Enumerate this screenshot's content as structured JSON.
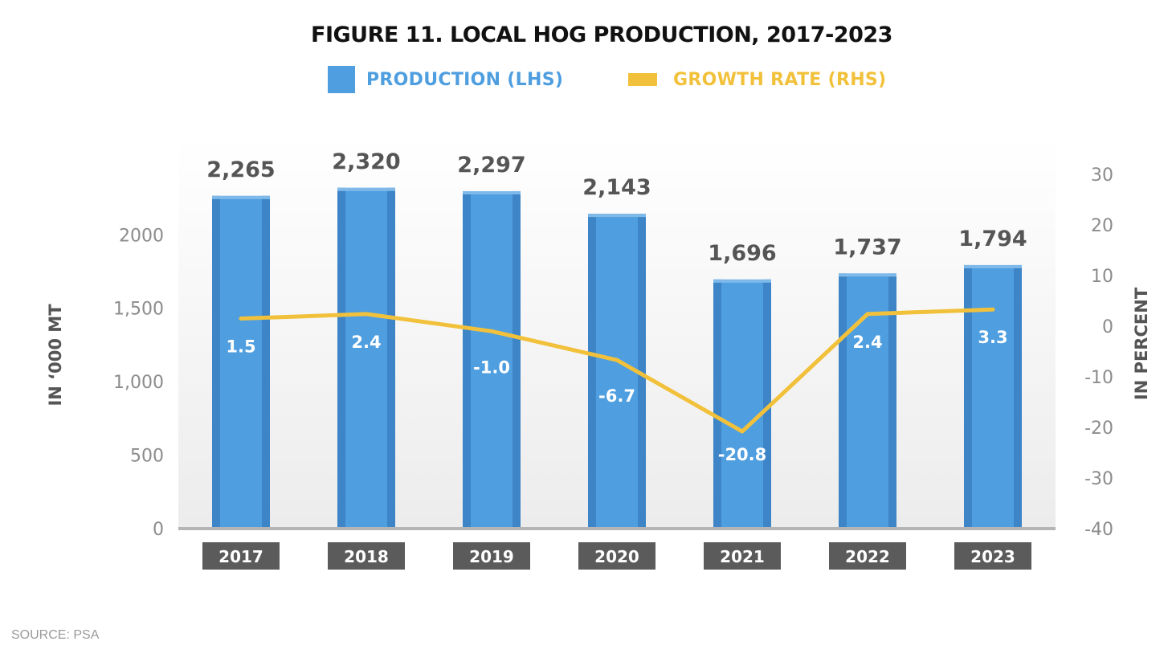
{
  "colors": {
    "bar": "#4e9ee0",
    "bar_edge": "#3d85c6",
    "line": "#f2c13b",
    "legend_bar_text": "#4e9ee0",
    "legend_line_text": "#f2c13b",
    "year_box": "#5b5b5b",
    "axis_text": "#8c8c8c",
    "value_text": "#555555"
  },
  "chart_data": {
    "type": "bar",
    "title": "FIGURE 11. LOCAL HOG PRODUCTION, 2017-2023",
    "categories": [
      "2017",
      "2018",
      "2019",
      "2020",
      "2021",
      "2022",
      "2023"
    ],
    "series": [
      {
        "name": "PRODUCTION (LHS)",
        "type": "bar",
        "axis": "left",
        "values": [
          2265,
          2320,
          2297,
          2143,
          1696,
          1737,
          1794
        ],
        "labels": [
          "2,265",
          "2,320",
          "2,297",
          "2,143",
          "1,696",
          "1,737",
          "1,794"
        ]
      },
      {
        "name": "GROWTH RATE (RHS)",
        "type": "line",
        "axis": "right",
        "values": [
          1.5,
          2.4,
          -1.0,
          -6.7,
          -20.8,
          2.4,
          3.3
        ],
        "labels": [
          "1.5",
          "2.4",
          "-1.0",
          "-6.7",
          "-20.8",
          "2.4",
          "3.3"
        ]
      }
    ],
    "ylabel_left": "IN ‘000 MT",
    "ylabel_right": "IN PERCENT",
    "ylim_left": [
      0,
      2450
    ],
    "ylim_right": [
      -40,
      30
    ],
    "yticks_left": [
      "0",
      "500",
      "1,000",
      "1,500",
      "2000"
    ],
    "yticks_left_values": [
      0,
      500,
      1000,
      1500,
      2000
    ],
    "yticks_right": [
      "-40",
      "-30",
      "-20",
      "-10",
      "0",
      "10",
      "20",
      "30"
    ],
    "yticks_right_values": [
      -40,
      -30,
      -20,
      -10,
      0,
      10,
      20,
      30
    ],
    "grid": false,
    "legend_position": "top"
  },
  "source": "SOURCE: PSA"
}
